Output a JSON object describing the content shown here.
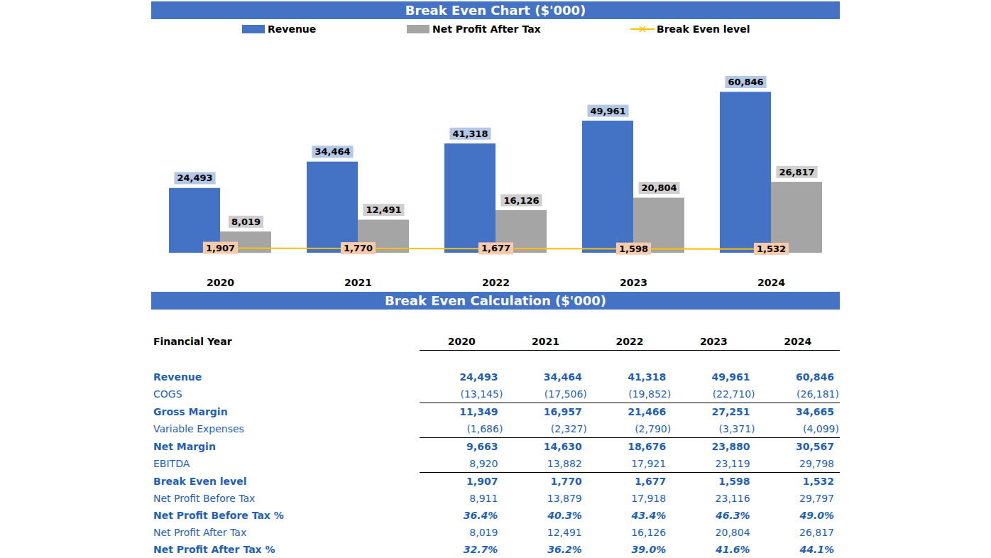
{
  "chart_data": {
    "type": "bar",
    "title": "Break Even Chart ($'000)",
    "categories": [
      "2020",
      "2021",
      "2022",
      "2023",
      "2024"
    ],
    "series": [
      {
        "name": "Revenue",
        "type": "bar",
        "color": "#4472c4",
        "values": [
          24493,
          34464,
          41318,
          49961,
          60846
        ],
        "value_labels": [
          "24,493",
          "34,464",
          "41,318",
          "49,961",
          "60,846"
        ]
      },
      {
        "name": "Net Profit After Tax",
        "type": "bar",
        "color": "#a5a5a5",
        "values": [
          8019,
          12491,
          16126,
          20804,
          26817
        ],
        "value_labels": [
          "8,019",
          "12,491",
          "16,126",
          "20,804",
          "26,817"
        ]
      },
      {
        "name": "Break Even level",
        "type": "line",
        "color": "#ffc000",
        "marker": "x",
        "values": [
          1907,
          1770,
          1677,
          1598,
          1532
        ],
        "value_labels": [
          "1,907",
          "1,770",
          "1,677",
          "1,598",
          "1,532"
        ]
      }
    ],
    "ylim": [
      0,
      80000
    ],
    "data_labels": true,
    "tick_labels": "x",
    "legend": "top",
    "grid": false
  },
  "table": {
    "title": "Break Even Calculation ($'000)",
    "header": [
      "Financial Year",
      "2020",
      "2021",
      "2022",
      "2023",
      "2024"
    ],
    "rows": [
      [
        "Revenue",
        "24,493",
        "34,464",
        "41,318",
        "49,961",
        "60,846"
      ],
      [
        "COGS",
        "(13,145)",
        "(17,506)",
        "(19,852)",
        "(22,710)",
        "(26,181)"
      ],
      [
        "Gross Margin",
        "11,349",
        "16,957",
        "21,466",
        "27,251",
        "34,665"
      ],
      [
        "Variable Expenses",
        "(1,686)",
        "(2,327)",
        "(2,790)",
        "(3,371)",
        "(4,099)"
      ],
      [
        "Net Margin",
        "9,663",
        "14,630",
        "18,676",
        "23,880",
        "30,567"
      ],
      [
        "EBITDA",
        "8,920",
        "13,882",
        "17,921",
        "23,119",
        "29,798"
      ],
      [
        "Break Even level",
        "1,907",
        "1,770",
        "1,677",
        "1,598",
        "1,532"
      ],
      [
        "Net Profit Before Tax",
        "8,911",
        "13,879",
        "17,918",
        "23,116",
        "29,797"
      ],
      [
        "Net Profit Before Tax %",
        "36.4%",
        "40.3%",
        "43.4%",
        "46.3%",
        "49.0%"
      ],
      [
        "Net Profit After Tax",
        "8,019",
        "12,491",
        "16,126",
        "20,804",
        "26,817"
      ],
      [
        "Net Profit After Tax %",
        "32.7%",
        "36.2%",
        "39.0%",
        "41.6%",
        "44.1%"
      ]
    ]
  }
}
